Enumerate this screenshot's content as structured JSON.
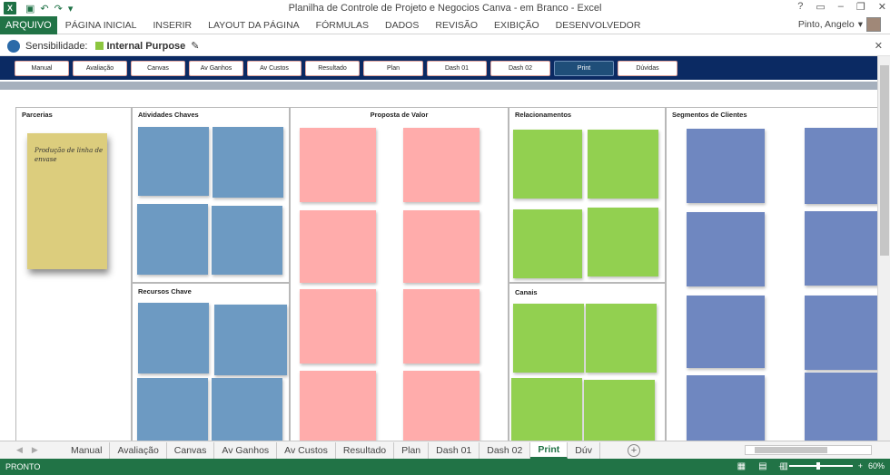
{
  "app": {
    "title": "Planilha de Controle de Projeto e Negocios Canva - em Branco - Excel",
    "logo": "X",
    "window_controls": [
      "?",
      "▭",
      "–",
      "❐",
      "✕"
    ]
  },
  "ribbon": {
    "file_tab": "ARQUIVO",
    "tabs": [
      "PÁGINA INICIAL",
      "INSERIR",
      "LAYOUT DA PÁGINA",
      "FÓRMULAS",
      "DADOS",
      "REVISÃO",
      "EXIBIÇÃO",
      "DESENVOLVEDOR"
    ],
    "user": "Pinto, Angelo"
  },
  "sensitivity": {
    "label": "Sensibilidade:",
    "value": "Internal Purpose",
    "chip_color": "#8cc63f"
  },
  "sheet_nav": {
    "buttons": [
      "Manual",
      "Avaliação",
      "Canvas",
      "Av Ganhos",
      "Av Custos",
      "Resultado",
      "Plan",
      "Dash 01",
      "Dash 02",
      "Print",
      "Dúvidas"
    ],
    "active": "Print"
  },
  "canvas": {
    "parcerias": {
      "title": "Parcerias",
      "note_text": "Produção de linha de envase"
    },
    "atividades": {
      "title": "Atividades Chaves"
    },
    "recursos": {
      "title": "Recursos Chave"
    },
    "proposta": {
      "title": "Proposta de Valor"
    },
    "relacionamentos": {
      "title": "Relacionamentos"
    },
    "canais": {
      "title": "Canais"
    },
    "segmentos": {
      "title": "Segmentos de Clientes"
    },
    "colors": {
      "blue": "#6d9ac2",
      "pink": "#ffacab",
      "green": "#92d050",
      "purple": "#6f87c0",
      "yellow": "#dccd7d"
    }
  },
  "sheet_tabs": {
    "tabs": [
      "Manual",
      "Avaliação",
      "Canvas",
      "Av Ganhos",
      "Av Custos",
      "Resultado",
      "Plan",
      "Dash 01",
      "Dash 02",
      "Print",
      "Dúv"
    ],
    "active": "Print",
    "add_label": "+"
  },
  "status": {
    "ready": "PRONTO",
    "zoom": "60%"
  }
}
